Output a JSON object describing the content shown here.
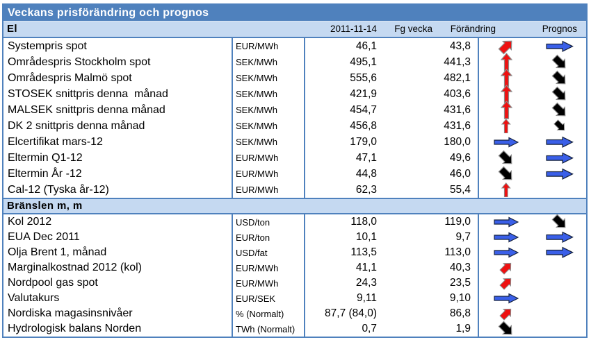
{
  "title": "Veckans prisförändring och prognos",
  "headers": {
    "date": "2011-11-14",
    "prev_week": "Fg vecka",
    "change": "Förändring",
    "forecast": "Prognos"
  },
  "sections": [
    {
      "label": "El",
      "rows": [
        {
          "name": "Systempris spot",
          "unit": "EUR/MWh",
          "current": "46,1",
          "prev": "43,8",
          "change": {
            "dir": "up-right",
            "color": "red",
            "size": 1
          },
          "forecast": {
            "dir": "right",
            "color": "blue",
            "size": 1.1
          }
        },
        {
          "name": "Områdespris Stockholm spot",
          "unit": "SEK/MWh",
          "current": "495,1",
          "prev": "441,3",
          "change": {
            "dir": "up",
            "color": "red",
            "size": 1
          },
          "forecast": {
            "dir": "down-right",
            "color": "black",
            "size": 1
          }
        },
        {
          "name": "Områdespris Malmö spot",
          "unit": "SEK/MWh",
          "current": "555,6",
          "prev": "482,1",
          "change": {
            "dir": "up",
            "color": "red",
            "size": 1
          },
          "forecast": {
            "dir": "down-right",
            "color": "black",
            "size": 1
          }
        },
        {
          "name": "STOSEK snittpris denna  månad",
          "unit": "SEK/MWh",
          "current": "421,9",
          "prev": "403,6",
          "change": {
            "dir": "up",
            "color": "red",
            "size": 1
          },
          "forecast": {
            "dir": "down-right",
            "color": "black",
            "size": 1
          }
        },
        {
          "name": "MALSEK snittpris denna månad",
          "unit": "SEK/MWh",
          "current": "454,7",
          "prev": "431,6",
          "change": {
            "dir": "up",
            "color": "red",
            "size": 1
          },
          "forecast": {
            "dir": "down-right",
            "color": "black",
            "size": 1
          }
        },
        {
          "name": "DK 2 snittpris denna månad",
          "unit": "SEK/MWh",
          "current": "456,8",
          "prev": "431,6",
          "change": {
            "dir": "up",
            "color": "red",
            "size": 0.8
          },
          "forecast": {
            "dir": "down-right",
            "color": "black",
            "size": 0.8
          }
        },
        {
          "name": "Elcertifikat mars-12",
          "unit": "SEK/MWh",
          "current": "179,0",
          "prev": "180,0",
          "change": {
            "dir": "right",
            "color": "blue",
            "size": 1
          },
          "forecast": {
            "dir": "right",
            "color": "blue",
            "size": 1.1
          }
        },
        {
          "name": "Eltermin Q1-12",
          "unit": "EUR/MWh",
          "current": "47,1",
          "prev": "49,6",
          "change": {
            "dir": "down-right",
            "color": "black",
            "size": 1
          },
          "forecast": {
            "dir": "right",
            "color": "blue",
            "size": 1.1
          }
        },
        {
          "name": "Eltermin År -12",
          "unit": "EUR/MWh",
          "current": "44,8",
          "prev": "46,0",
          "change": {
            "dir": "down-right",
            "color": "black",
            "size": 1
          },
          "forecast": {
            "dir": "right",
            "color": "blue",
            "size": 1.1
          }
        },
        {
          "name": "Cal-12 (Tyska år-12)",
          "unit": "EUR/MWh",
          "current": "62,3",
          "prev": "55,4",
          "change": {
            "dir": "up",
            "color": "red",
            "size": 0.8
          },
          "forecast": null
        }
      ]
    },
    {
      "label": "Bränslen m, m",
      "rows": [
        {
          "name": "Kol 2012",
          "unit": "USD/ton",
          "current": "118,0",
          "prev": "119,0",
          "change": {
            "dir": "right",
            "color": "blue",
            "size": 1
          },
          "forecast": {
            "dir": "down-right",
            "color": "black",
            "size": 1
          }
        },
        {
          "name": "EUA Dec 2011",
          "unit": "EUR/ton",
          "current": "10,1",
          "prev": "9,7",
          "change": {
            "dir": "right",
            "color": "blue",
            "size": 1
          },
          "forecast": {
            "dir": "right",
            "color": "blue",
            "size": 1.1
          }
        },
        {
          "name": "Olja Brent 1, månad",
          "unit": "USD/fat",
          "current": "113,5",
          "prev": "113,0",
          "change": {
            "dir": "right",
            "color": "blue",
            "size": 1
          },
          "forecast": {
            "dir": "right",
            "color": "blue",
            "size": 1.1
          }
        },
        {
          "name": "Marginalkostnad 2012 (kol)",
          "unit": "EUR/MWh",
          "current": "41,1",
          "prev": "40,3",
          "change": {
            "dir": "up-right",
            "color": "red",
            "size": 0.85
          },
          "forecast": null
        },
        {
          "name": "Nordpool gas spot",
          "unit": "EUR/MWh",
          "current": "24,3",
          "prev": "23,5",
          "change": {
            "dir": "up-right",
            "color": "red",
            "size": 0.85
          },
          "forecast": null
        },
        {
          "name": "Valutakurs",
          "unit": "EUR/SEK",
          "current": "9,11",
          "prev": "9,10",
          "change": {
            "dir": "right",
            "color": "blue",
            "size": 1
          },
          "forecast": null
        },
        {
          "name": "Nordiska magasinsnivåer",
          "unit": "% (Normalt)",
          "current": "87,7 (84,0)",
          "prev": "86,8",
          "change": {
            "dir": "up-right",
            "color": "red",
            "size": 0.85
          },
          "forecast": null
        },
        {
          "name": "Hydrologisk balans Norden",
          "unit": "TWh (Normalt)",
          "current": "0,7",
          "prev": "1,9",
          "change": {
            "dir": "down-right",
            "color": "black",
            "size": 1
          },
          "forecast": null
        }
      ]
    }
  ],
  "colors": {
    "title_bg": "#4F81BD",
    "section_bg": "#C5D9F1",
    "border": "#4F81BD",
    "arrow_red": "#EE1111",
    "arrow_blue": "#3A5FE8",
    "arrow_black": "#000000"
  }
}
